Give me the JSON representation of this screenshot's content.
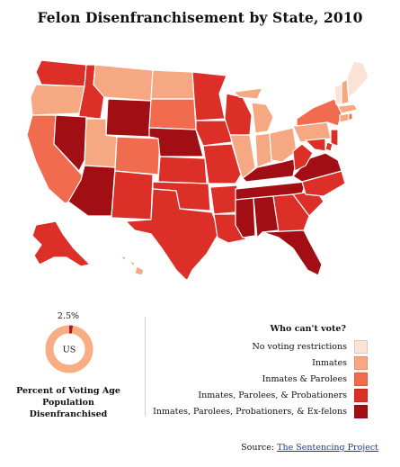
{
  "title": "Felon Disenfranchisement by State, 2010",
  "colors": {
    "none": "#fbe3d6",
    "inmates": "#f6a883",
    "parolees": "#f16b4f",
    "probationers": "#dc2f27",
    "exfelons": "#a10e14",
    "donut_bg": "#f9ad85",
    "donut_fill": "#b01822"
  },
  "donut": {
    "percent_label": "2.5%",
    "value": 2.5,
    "center_label": "US",
    "caption_line1": "Percent of Voting Age",
    "caption_line2": "Population Disenfranchised"
  },
  "legend": {
    "title": "Who can't vote?",
    "items": [
      {
        "label": "No voting restrictions",
        "color": "#fbe3d6"
      },
      {
        "label": "Inmates",
        "color": "#f6a883"
      },
      {
        "label": "Inmates & Parolees",
        "color": "#f16b4f"
      },
      {
        "label": "Inmates, Parolees, & Probationers",
        "color": "#dc2f27"
      },
      {
        "label": "Inmates, Parolees, Probationers, & Ex-felons",
        "color": "#a10e14"
      }
    ]
  },
  "source": {
    "prefix": "Source: ",
    "link_text": "The Sentencing Project"
  }
}
